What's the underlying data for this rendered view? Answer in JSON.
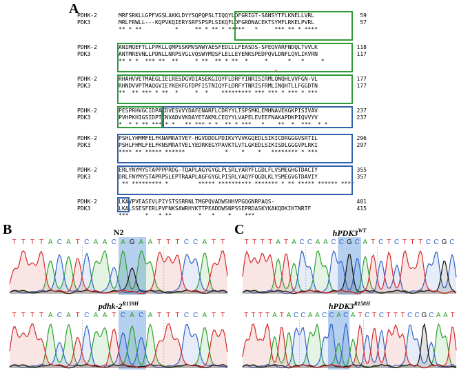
{
  "panels": {
    "a": "A",
    "b": "B",
    "c": "C"
  },
  "alignment": {
    "blocks": [
      {
        "seq1_name": "PDHK-2",
        "seq1": "MRFSRKLLGPFVGSLAKKLDYYSQPQPSLTIQQYLDFGRIGT-SANSYTFLKNELLVRL",
        "seq1_end": "59",
        "seq2_name": "PDK3",
        "seq2": "MRLFRWLL---KQPVKQIERYSRFSPSPLSIKQFLDFGRDNACEKTSYMFLRKELPVRL",
        "seq2_end": "57",
        "consensus": "** * **          *     ** * ** * *****   *     *** ** * ****"
      },
      {
        "seq1_name": "PDHK-2",
        "seq1": "ANIMQEFTLLPPKLLQMPSSKMVSNWYAESFEDLLLFEASDS-SPEQVARFNDQLTVVLK",
        "seq1_end": "118",
        "seq2_name": "PDK3",
        "seq2": "ANTMREVNLLPDNLLNRPSVGLVQSWYMQSFLELLEYENKSPEDPQVLDNFLQVLIKVRN",
        "seq2_end": "117",
        "consensus": "** * *  *** **  **     * **  ** * **  *     *      *   *     *"
      },
      {
        "seq1_name": "PDHK-2",
        "seq1": "RHAHVVETMAEGLIELRESDGVDIASEKGIQYFLDRFYINRISIRMLQNQHLVVFGN-VL",
        "seq1_end": "177",
        "seq2_name": "PDK3",
        "seq2": "RHNDVVPTMAQGVIEYKEKFGFDPFISTNIQYFLDRFYTNRISFRMLINQHTLLFGGDTN",
        "seq2_end": "177",
        "consensus": "**  ** *** * **  *     *  *    ********* *** *** * *** * ***"
      },
      {
        "seq1_name": "PDHK-2",
        "seq1": "PESPRHVGCIDPACDVESVVYDAFENARFLCDRYYLTSPSMKLEMHNAVEKGKPISIVAV",
        "seq1_end": "237",
        "seq2_name": "PDK3",
        "seq2": "PVHPKHIGSIDPTCNVADVVKDAYETAKMLCEQYYLVAPELEVEEFNAKAPDKPIQVVYV",
        "seq2_end": "237",
        "consensus": "*  * * ** *** * *   ** *** * *  ** * ***   *    **  *  ***  * *"
      },
      {
        "seq1_name": "PDHK-2",
        "seq1": "PSHLYHMMFELFKNAMRATVEY-HGVDDDLPDIKVYVVKGQEDLSIKICDRGGGVSRTIL",
        "seq1_end": "296",
        "seq2_name": "PDK3",
        "seq2": "PSHLFHMLFELFKNSMRATVELYEDRKEGYPAVKTLVTLGKEDLSIKISDLGGGVPLRKI",
        "seq2_end": "297",
        "consensus": "**** ** ***** ******            *    *    *   ******** * ***"
      },
      {
        "seq1_name": "PDHK-2",
        "seq1": "ERLYNYMYSTAPPPPRDG-TQAPLAGYGYGLPLSRLYARYFLGDLFLVSMEGHGTDACIY",
        "seq1_end": "355",
        "seq2_name": "PDK3",
        "seq2": "DRLFNYMYSTAPRPSLEPTRAAPLAGFGYGLPISRLYAQYFQGDLKLYSMEGVGTDAVIY",
        "seq2_end": "357",
        "consensus": " ** ********* *         ***** ********** ******* * ** ***** ****** ****"
      },
      {
        "seq1_name": "PDHK-2",
        "seq1": "LKAVPVEASEVLPIYSTSSRRNLTMGPQVADWSHHVPGQGNRPAQS-",
        "seq1_end": "401",
        "seq2_name": "PDK3",
        "seq2": "LKALSSESFERLPVFNKSAWRHYKTTPEADDWSNPSSEPRDASKYKAKQDKIKTNRTF",
        "seq2_end": "415",
        "consensus": "***     *   * **        *   *    *    ***"
      }
    ]
  },
  "chromatograms": [
    {
      "id": "n2",
      "label": "N2",
      "label_sup": "",
      "italic": false,
      "bases": [
        "T",
        "T",
        "T",
        "T",
        "A",
        "C",
        "A",
        "T",
        "C",
        "A",
        "A",
        "C",
        "A",
        "G",
        "A",
        "A",
        "T",
        "T",
        "T",
        "C",
        "C",
        "A",
        "T",
        "T"
      ],
      "highlight_codon": "AGA"
    },
    {
      "id": "pdhk2-mut",
      "label": "pdhk-2",
      "label_sup": "R159H",
      "italic": true,
      "bases": [
        "T",
        "T",
        "T",
        "T",
        "A",
        "C",
        "A",
        "T",
        "C",
        "A",
        "A",
        "T",
        "C",
        "A",
        "C",
        "A",
        "T",
        "T",
        "T",
        "C",
        "C",
        "A",
        "T",
        "T"
      ],
      "highlight_codon": "CAC"
    },
    {
      "id": "hpdk3-wt",
      "label": "hPDK3",
      "label_sup": "WT",
      "italic": true,
      "bases": [
        "T",
        "T",
        "T",
        "T",
        "A",
        "T",
        "A",
        "C",
        "C",
        "A",
        "A",
        "C",
        "C",
        "G",
        "C",
        "A",
        "T",
        "C",
        "T",
        "C",
        "T",
        "T",
        "T",
        "C",
        "C",
        "G",
        "C"
      ],
      "highlight_codon": "CGC"
    },
    {
      "id": "hpdk3-mut",
      "label": "hPDK3",
      "label_sup": "R158H",
      "italic": true,
      "bases": [
        "T",
        "T",
        "T",
        "T",
        "A",
        "T",
        "A",
        "C",
        "C",
        "A",
        "A",
        "C",
        "C",
        "A",
        "C",
        "A",
        "T",
        "C",
        "T",
        "C",
        "T",
        "T",
        "T",
        "C",
        "C",
        "G",
        "C",
        "A",
        "A",
        "T"
      ],
      "highlight_codon": "CAC"
    }
  ],
  "colors": {
    "A": "#2ca02c",
    "C": "#2f62c8",
    "G": "#111111",
    "T": "#d62728",
    "box_green": "#2e9a3a",
    "box_blue": "#2f62a8",
    "highlight": "#9ec2ea",
    "red_star": "#e0302a"
  }
}
